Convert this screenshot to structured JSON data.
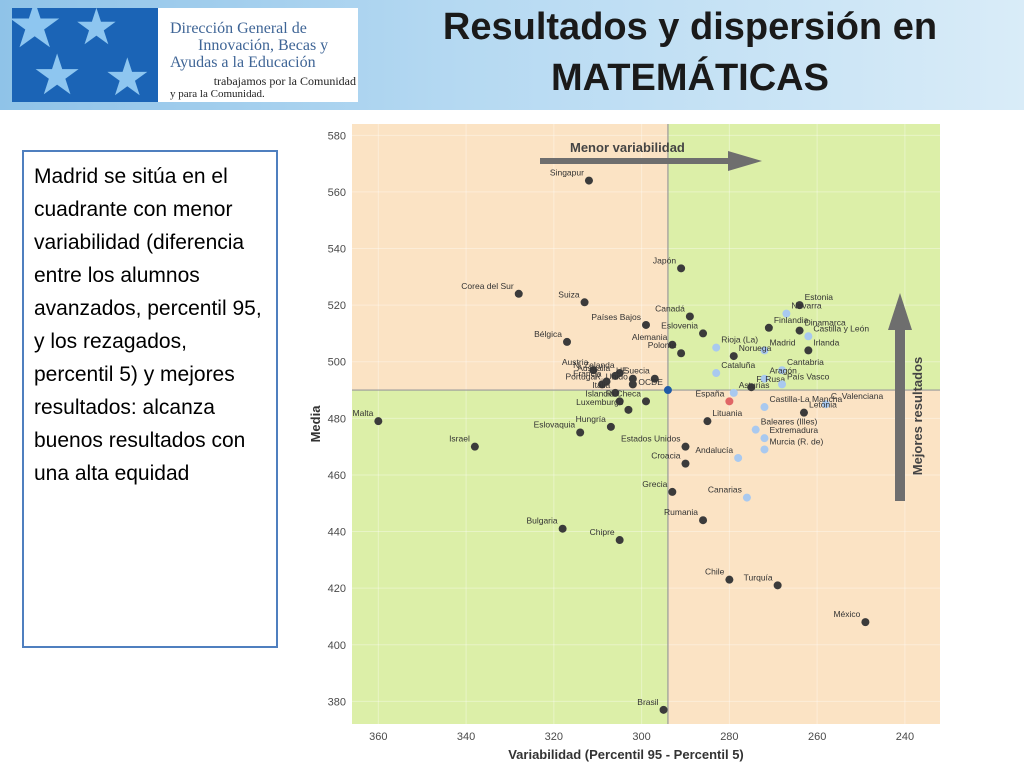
{
  "header": {
    "logo_line1": "Dirección General de",
    "logo_line2": "Innovación, Becas y",
    "logo_line3": "Ayudas a la Educación",
    "logo_line4": "trabajamos por la Comunidad",
    "logo_line5": "y para la Comunidad.",
    "title_line1": "Resultados y dispersión en",
    "title_line2": "MATEMÁTICAS"
  },
  "sidebar_text": "Madrid se sitúa en el cuadrante con menor variabilidad (diferencia entre los alumnos avanzados, percentil 95, y los rezagados, percentil 5) y mejores resultados: alcanza buenos resultados con una alta equidad",
  "colors": {
    "quadrant_green": "#dcefa8",
    "quadrant_peach": "#fbe3c4",
    "country_point": "#3b3b3b",
    "region_point": "#a9c9ef",
    "spain_point": "#e06666",
    "oecd_point": "#1f5aa6",
    "arrow": "#6e6e6e"
  },
  "chart_data": {
    "type": "scatter",
    "xlabel": "Variabilidad (Percentil 95 - Percentil 5)",
    "ylabel": "Media",
    "x_reversed": true,
    "xlim": [
      366,
      232
    ],
    "ylim": [
      372,
      584
    ],
    "xticks": [
      360,
      340,
      320,
      300,
      280,
      260,
      240
    ],
    "yticks": [
      380,
      400,
      420,
      440,
      460,
      480,
      500,
      520,
      540,
      560,
      580
    ],
    "divider_x": 294,
    "divider_y": 490,
    "annotations": {
      "arrow_x": "Menor variabilidad",
      "arrow_y": "Mejores resultados"
    },
    "points": [
      {
        "label": "Singapur",
        "x": 312,
        "y": 564,
        "kind": "country"
      },
      {
        "label": "Japón",
        "x": 291,
        "y": 533,
        "kind": "country"
      },
      {
        "label": "Corea del Sur",
        "x": 328,
        "y": 524,
        "kind": "country"
      },
      {
        "label": "Suiza",
        "x": 313,
        "y": 521,
        "kind": "country"
      },
      {
        "label": "Estonia",
        "x": 264,
        "y": 520,
        "kind": "country"
      },
      {
        "label": "Navarra",
        "x": 267,
        "y": 517,
        "kind": "region"
      },
      {
        "label": "Canadá",
        "x": 289,
        "y": 516,
        "kind": "country"
      },
      {
        "label": "Países Bajos",
        "x": 299,
        "y": 513,
        "kind": "country"
      },
      {
        "label": "Finlandia",
        "x": 271,
        "y": 512,
        "kind": "country"
      },
      {
        "label": "Dinamarca",
        "x": 264,
        "y": 511,
        "kind": "country"
      },
      {
        "label": "Eslovenia",
        "x": 286,
        "y": 510,
        "kind": "country"
      },
      {
        "label": "Castilla y León",
        "x": 262,
        "y": 509,
        "kind": "region"
      },
      {
        "label": "Bélgica",
        "x": 317,
        "y": 507,
        "kind": "country"
      },
      {
        "label": "Alemania",
        "x": 293,
        "y": 506,
        "kind": "country"
      },
      {
        "label": "Rioja (La)",
        "x": 283,
        "y": 505,
        "kind": "region"
      },
      {
        "label": "Irlanda",
        "x": 262,
        "y": 504,
        "kind": "country"
      },
      {
        "label": "Madrid",
        "x": 272,
        "y": 504,
        "kind": "region"
      },
      {
        "label": "Polonia",
        "x": 291,
        "y": 503,
        "kind": "country"
      },
      {
        "label": "Noruega",
        "x": 279,
        "y": 502,
        "kind": "country"
      },
      {
        "label": "N. Zelanda",
        "x": 305,
        "y": 496,
        "kind": "country"
      },
      {
        "label": "Cataluña",
        "x": 283,
        "y": 496,
        "kind": "region"
      },
      {
        "label": "Cantabria",
        "x": 268,
        "y": 497,
        "kind": "region"
      },
      {
        "label": "Aragón",
        "x": 272,
        "y": 494,
        "kind": "region"
      },
      {
        "label": "Austria",
        "x": 311,
        "y": 497,
        "kind": "country"
      },
      {
        "label": "Australia",
        "x": 306,
        "y": 495,
        "kind": "country"
      },
      {
        "label": "UE",
        "x": 302,
        "y": 494,
        "kind": "country"
      },
      {
        "label": "Suecia",
        "x": 297,
        "y": 494,
        "kind": "country"
      },
      {
        "label": "F. Rusa",
        "x": 275,
        "y": 491,
        "kind": "country"
      },
      {
        "label": "Francia",
        "x": 308,
        "y": 493,
        "kind": "country"
      },
      {
        "label": "País Vasco",
        "x": 268,
        "y": 492,
        "kind": "region"
      },
      {
        "label": "OCDE",
        "x": 294,
        "y": 490,
        "kind": "oecd"
      },
      {
        "label": "Asturias",
        "x": 279,
        "y": 489,
        "kind": "region"
      },
      {
        "label": "Portugal",
        "x": 309,
        "y": 492,
        "kind": "country"
      },
      {
        "label": "R. Unido",
        "x": 302,
        "y": 492,
        "kind": "country"
      },
      {
        "label": "Italia",
        "x": 306,
        "y": 489,
        "kind": "country"
      },
      {
        "label": "España",
        "x": 280,
        "y": 486,
        "kind": "spain"
      },
      {
        "label": "R. Checa",
        "x": 299,
        "y": 486,
        "kind": "country"
      },
      {
        "label": "C. Valenciana",
        "x": 258,
        "y": 485,
        "kind": "region"
      },
      {
        "label": "Islandia",
        "x": 305,
        "y": 486,
        "kind": "country"
      },
      {
        "label": "Castilla-La Mancha",
        "x": 272,
        "y": 484,
        "kind": "region"
      },
      {
        "label": "Luxemburgo",
        "x": 303,
        "y": 483,
        "kind": "country"
      },
      {
        "label": "Lituania",
        "x": 285,
        "y": 479,
        "kind": "country"
      },
      {
        "label": "Letonia",
        "x": 263,
        "y": 482,
        "kind": "country"
      },
      {
        "label": "Baleares (Illes)",
        "x": 274,
        "y": 476,
        "kind": "region"
      },
      {
        "label": "Malta",
        "x": 360,
        "y": 479,
        "kind": "country"
      },
      {
        "label": "Eslovaquia",
        "x": 314,
        "y": 475,
        "kind": "country"
      },
      {
        "label": "Hungría",
        "x": 307,
        "y": 477,
        "kind": "country"
      },
      {
        "label": "Extremadura",
        "x": 272,
        "y": 473,
        "kind": "region"
      },
      {
        "label": "Estados Unidos",
        "x": 290,
        "y": 470,
        "kind": "country"
      },
      {
        "label": "Israel",
        "x": 338,
        "y": 470,
        "kind": "country"
      },
      {
        "label": "Murcia (R. de)",
        "x": 272,
        "y": 469,
        "kind": "region"
      },
      {
        "label": "Andalucía",
        "x": 278,
        "y": 466,
        "kind": "region"
      },
      {
        "label": "Croacia",
        "x": 290,
        "y": 464,
        "kind": "country"
      },
      {
        "label": "Grecia",
        "x": 293,
        "y": 454,
        "kind": "country"
      },
      {
        "label": "Canarias",
        "x": 276,
        "y": 452,
        "kind": "region"
      },
      {
        "label": "Rumania",
        "x": 286,
        "y": 444,
        "kind": "country"
      },
      {
        "label": "Bulgaria",
        "x": 318,
        "y": 441,
        "kind": "country"
      },
      {
        "label": "Chipre",
        "x": 305,
        "y": 437,
        "kind": "country"
      },
      {
        "label": "Chile",
        "x": 280,
        "y": 423,
        "kind": "country"
      },
      {
        "label": "Turquía",
        "x": 269,
        "y": 421,
        "kind": "country"
      },
      {
        "label": "México",
        "x": 249,
        "y": 408,
        "kind": "country"
      },
      {
        "label": "Brasil",
        "x": 295,
        "y": 377,
        "kind": "country"
      }
    ]
  }
}
